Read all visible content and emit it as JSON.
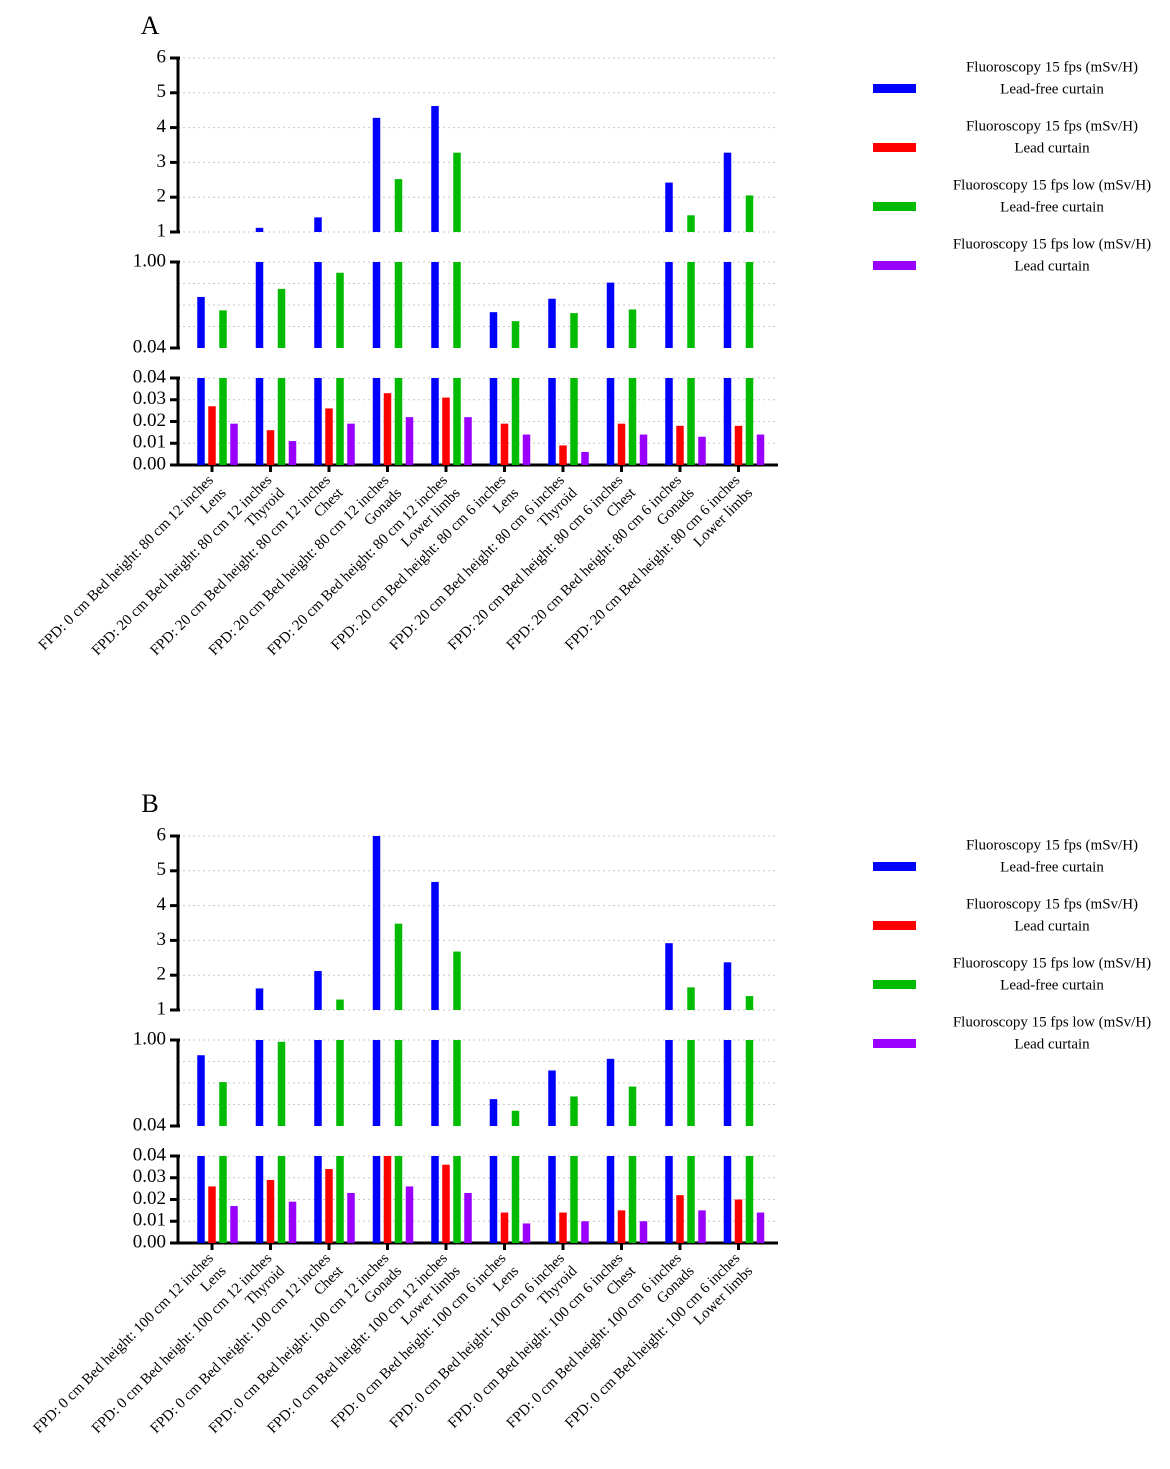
{
  "colors": {
    "lead_free": "#0000ff",
    "lead": "#ff0000",
    "low_lead_free": "#00bb00",
    "low_lead": "#9900ff"
  },
  "chart_data": [
    {
      "type": "bar",
      "panel_label": "A",
      "broken_axis": true,
      "segments": [
        {
          "range": [
            1,
            6
          ],
          "ticks": [
            "1",
            "2",
            "3",
            "4",
            "5",
            "6"
          ],
          "tick_values": [
            1,
            2,
            3,
            4,
            5,
            6
          ]
        },
        {
          "range": [
            0.04,
            1.0
          ],
          "ticks": [
            "0.04",
            "1.00"
          ],
          "tick_values": [
            0.04,
            1.0
          ]
        },
        {
          "range": [
            0,
            0.04
          ],
          "ticks": [
            "0.00",
            "0.01",
            "0.02",
            "0.03",
            "0.04"
          ],
          "tick_values": [
            0,
            0.01,
            0.02,
            0.03,
            0.04
          ]
        }
      ],
      "categories": [
        [
          "FPD: 0 cm Bed height: 80 cm 12 inches",
          "Lens"
        ],
        [
          "FPD: 20 cm Bed height: 80 cm 12 inches",
          "Thyroid"
        ],
        [
          "FPD: 20 cm Bed height: 80 cm 12 inches",
          "Chest"
        ],
        [
          "FPD: 20 cm Bed height: 80 cm 12 inches",
          "Gonads"
        ],
        [
          "FPD: 20 cm Bed height: 80 cm 12 inches",
          "Lower limbs"
        ],
        [
          "FPD: 20 cm Bed height: 80 cm 6 inches",
          "Lens"
        ],
        [
          "FPD: 20 cm Bed height: 80 cm 6 inches",
          "Thyroid"
        ],
        [
          "FPD: 20 cm Bed height: 80 cm 6 inches",
          "Chest"
        ],
        [
          "FPD: 20 cm Bed height: 80 cm 6 inches",
          "Gonads"
        ],
        [
          "FPD: 20 cm Bed height: 80 cm 6 inches",
          "Lower limbs"
        ]
      ],
      "series": [
        {
          "name": "Fluoroscopy 15 fps (mSv/H) Lead-free curtain",
          "values": [
            0.61,
            1.12,
            1.42,
            4.28,
            4.62,
            0.44,
            0.59,
            0.77,
            2.42,
            3.28
          ]
        },
        {
          "name": "Fluoroscopy 15 fps (mSv/H) Lead curtain",
          "values": [
            0.027,
            0.016,
            0.026,
            0.033,
            0.031,
            0.019,
            0.009,
            0.019,
            0.018,
            0.018
          ]
        },
        {
          "name": "Fluoroscopy 15 fps low (mSv/H) Lead-free curtain",
          "values": [
            0.46,
            0.7,
            0.88,
            2.52,
            3.28,
            0.34,
            0.43,
            0.47,
            1.48,
            2.05
          ]
        },
        {
          "name": "Fluoroscopy 15 fps low (mSv/H) Lead curtain",
          "values": [
            0.019,
            0.011,
            0.019,
            0.022,
            0.022,
            0.014,
            0.006,
            0.014,
            0.013,
            0.014
          ]
        }
      ],
      "legend": [
        {
          "line1": "Fluoroscopy 15 fps (mSv/H)",
          "line2": "Lead-free curtain"
        },
        {
          "line1": "Fluoroscopy 15 fps (mSv/H)",
          "line2": "Lead curtain"
        },
        {
          "line1": "Fluoroscopy 15 fps low (mSv/H)",
          "line2": "Lead-free curtain"
        },
        {
          "line1": "Fluoroscopy 15 fps low (mSv/H)",
          "line2": "Lead curtain"
        }
      ],
      "legend_position": "top-right"
    },
    {
      "type": "bar",
      "panel_label": "B",
      "broken_axis": true,
      "segments": [
        {
          "range": [
            1,
            6
          ],
          "ticks": [
            "1",
            "2",
            "3",
            "4",
            "5",
            "6"
          ],
          "tick_values": [
            1,
            2,
            3,
            4,
            5,
            6
          ]
        },
        {
          "range": [
            0.04,
            1.0
          ],
          "ticks": [
            "0.04",
            "1.00"
          ],
          "tick_values": [
            0.04,
            1.0
          ]
        },
        {
          "range": [
            0,
            0.04
          ],
          "ticks": [
            "0.00",
            "0.01",
            "0.02",
            "0.03",
            "0.04"
          ],
          "tick_values": [
            0,
            0.01,
            0.02,
            0.03,
            0.04
          ]
        }
      ],
      "categories": [
        [
          "FPD: 0 cm Bed height: 100 cm 12 inches",
          "Lens"
        ],
        [
          "FPD: 0 cm Bed height: 100 cm 12 inches",
          "Thyroid"
        ],
        [
          "FPD: 0 cm Bed height: 100 cm 12 inches",
          "Chest"
        ],
        [
          "FPD: 0 cm Bed height: 100 cm 12 inches",
          "Gonads"
        ],
        [
          "FPD: 0 cm Bed height: 100 cm 12 inches",
          "Lower limbs"
        ],
        [
          "FPD: 0 cm Bed height: 100 cm 6 inches",
          "Lens"
        ],
        [
          "FPD: 0 cm Bed height: 100 cm 6 inches",
          "Thyroid"
        ],
        [
          "FPD: 0 cm Bed height: 100 cm 6 inches",
          "Chest"
        ],
        [
          "FPD: 0 cm Bed height: 100 cm 6 inches",
          "Gonads"
        ],
        [
          "FPD: 0 cm Bed height: 100 cm 6 inches",
          "Lower limbs"
        ]
      ],
      "series": [
        {
          "name": "Fluoroscopy 15 fps (mSv/H) Lead-free curtain",
          "values": [
            0.83,
            1.62,
            2.12,
            6.0,
            4.68,
            0.34,
            0.66,
            0.79,
            2.92,
            2.37
          ]
        },
        {
          "name": "Fluoroscopy 15 fps (mSv/H) Lead curtain",
          "values": [
            0.026,
            0.029,
            0.034,
            0.04,
            0.036,
            0.014,
            0.014,
            0.015,
            0.022,
            0.02
          ]
        },
        {
          "name": "Fluoroscopy 15 fps low (mSv/H) Lead-free curtain",
          "values": [
            0.53,
            0.98,
            1.3,
            3.48,
            2.68,
            0.21,
            0.37,
            0.48,
            1.65,
            1.4
          ]
        },
        {
          "name": "Fluoroscopy 15 fps low (mSv/H) Lead curtain",
          "values": [
            0.017,
            0.019,
            0.023,
            0.026,
            0.023,
            0.009,
            0.01,
            0.01,
            0.015,
            0.014
          ]
        }
      ],
      "legend": [
        {
          "line1": "Fluoroscopy 15 fps (mSv/H)",
          "line2": "Lead-free curtain"
        },
        {
          "line1": "Fluoroscopy 15 fps (mSv/H)",
          "line2": "Lead curtain"
        },
        {
          "line1": "Fluoroscopy 15 fps low (mSv/H)",
          "line2": "Lead-free curtain"
        },
        {
          "line1": "Fluoroscopy 15 fps low (mSv/H)",
          "line2": "Lead curtain"
        }
      ],
      "legend_position": "top-right"
    }
  ]
}
